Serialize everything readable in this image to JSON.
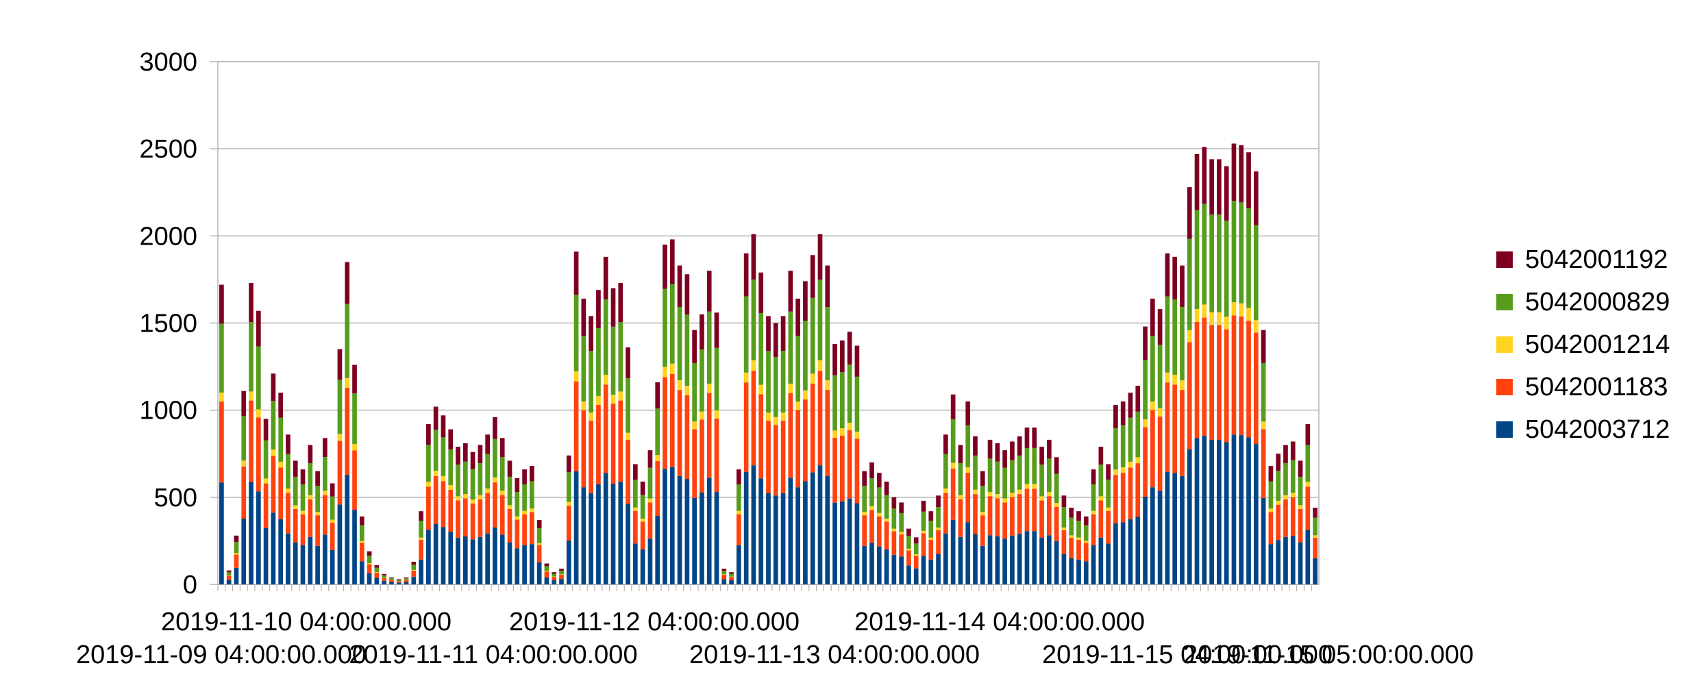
{
  "chart_data": {
    "type": "bar",
    "stacked": true,
    "ylim": [
      0,
      3000
    ],
    "yticks": [
      0,
      500,
      1000,
      1500,
      2000,
      2500,
      3000
    ],
    "grid": true,
    "legend_position": "right",
    "x_tick_labels": [
      "2019-11-09 04:00:00.000",
      "2019-11-10 04:00:00.000",
      "2019-11-11 04:00:00.000",
      "2019-11-12 04:00:00.000",
      "2019-11-13 04:00:00.000",
      "2019-11-14 04:00:00.000",
      "2019-11-15 04:00:00.000",
      "2019-11-15 05:00:00.000"
    ],
    "totals": [
      1720,
      80,
      280,
      1110,
      1730,
      1570,
      950,
      1210,
      1100,
      860,
      710,
      660,
      800,
      650,
      840,
      580,
      1350,
      1850,
      1260,
      390,
      190,
      110,
      60,
      40,
      30,
      40,
      130,
      420,
      920,
      1020,
      970,
      890,
      790,
      810,
      760,
      800,
      860,
      960,
      840,
      710,
      610,
      660,
      680,
      370,
      120,
      70,
      90,
      740,
      1910,
      1640,
      1540,
      1690,
      1880,
      1700,
      1730,
      1360,
      690,
      590,
      770,
      1160,
      1950,
      1980,
      1830,
      1780,
      1460,
      1550,
      1800,
      1560,
      90,
      70,
      660,
      1900,
      2010,
      1790,
      1540,
      1500,
      1540,
      1800,
      1640,
      1740,
      1890,
      2010,
      1830,
      1380,
      1400,
      1450,
      1370,
      650,
      700,
      640,
      590,
      500,
      470,
      320,
      270,
      480,
      420,
      510,
      860,
      1090,
      800,
      1050,
      850,
      650,
      830,
      810,
      770,
      820,
      850,
      900,
      900,
      790,
      830,
      730,
      510,
      440,
      420,
      390,
      660,
      790,
      690,
      1030,
      1050,
      1100,
      1140,
      1480,
      1640,
      1580,
      1900,
      1880,
      1830,
      2280,
      2470,
      2510,
      2440,
      2440,
      2400,
      2530,
      2520,
      2480,
      2370,
      1460,
      680,
      750,
      800,
      820,
      710,
      920,
      440
    ],
    "series": [
      {
        "name": "5042001192",
        "color": "#7e0021"
      },
      {
        "name": "5042000829",
        "color": "#579d1c"
      },
      {
        "name": "5042001214",
        "color": "#ffd320"
      },
      {
        "name": "5042001183",
        "color": "#ff420e"
      },
      {
        "name": "5042003712",
        "color": "#004586"
      }
    ]
  }
}
